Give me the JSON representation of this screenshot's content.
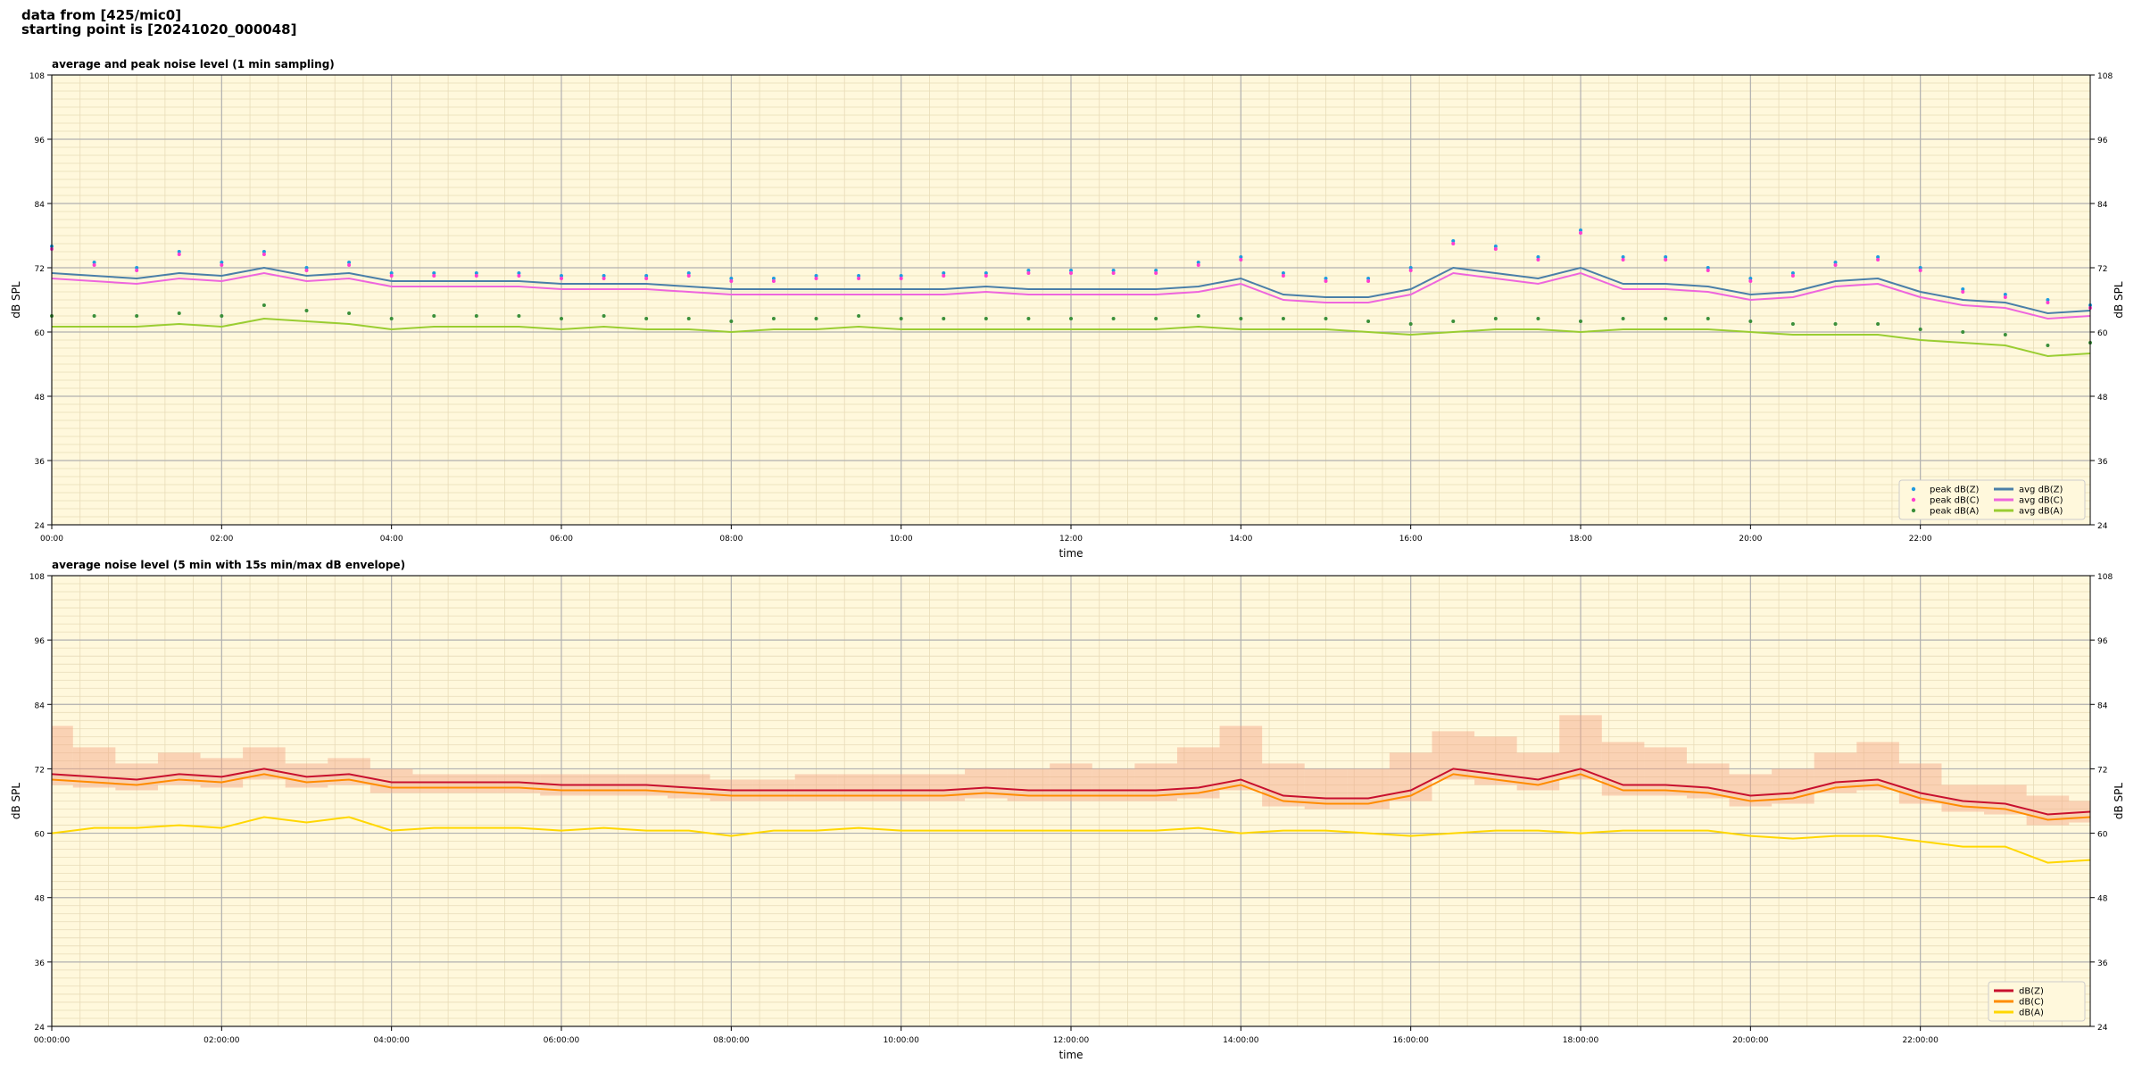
{
  "header": {
    "line1": "data from [425/mic0]",
    "line2": "starting point is [20241020_000048]"
  },
  "chart_data": [
    {
      "type": "line",
      "title": "average and peak noise level (1 min sampling)",
      "xlabel": "time",
      "ylabel": "dB SPL",
      "xlim": [
        0,
        24
      ],
      "ylim": [
        24,
        108
      ],
      "yticks": [
        24,
        36,
        48,
        60,
        72,
        84,
        96,
        108
      ],
      "xticks": [
        {
          "value": 0,
          "label": "00:00"
        },
        {
          "value": 2,
          "label": "02:00"
        },
        {
          "value": 4,
          "label": "04:00"
        },
        {
          "value": 6,
          "label": "06:00"
        },
        {
          "value": 8,
          "label": "08:00"
        },
        {
          "value": 10,
          "label": "10:00"
        },
        {
          "value": 12,
          "label": "12:00"
        },
        {
          "value": 14,
          "label": "14:00"
        },
        {
          "value": 16,
          "label": "16:00"
        },
        {
          "value": 18,
          "label": "18:00"
        },
        {
          "value": 20,
          "label": "20:00"
        },
        {
          "value": 22,
          "label": "22:00"
        }
      ],
      "grid": true,
      "minor_grid": true,
      "legend": "lower right",
      "legend_columns": 2,
      "background": "#fff8dc",
      "x": [
        0,
        0.5,
        1,
        1.5,
        2,
        2.5,
        3,
        3.5,
        4,
        4.5,
        5,
        5.5,
        6,
        6.5,
        7,
        7.5,
        8,
        8.5,
        9,
        9.5,
        10,
        10.5,
        11,
        11.5,
        12,
        12.5,
        13,
        13.5,
        14,
        14.5,
        15,
        15.5,
        16,
        16.5,
        17,
        17.5,
        18,
        18.5,
        19,
        19.5,
        20,
        20.5,
        21,
        21.5,
        22,
        22.5,
        23,
        23.5,
        24
      ],
      "series": [
        {
          "name": "peak dB(Z)",
          "kind": "scatter",
          "color": "#1f9be0",
          "values": [
            76,
            73,
            72,
            75,
            73,
            75,
            72,
            73,
            71,
            71,
            71,
            71,
            70.5,
            70.5,
            70.5,
            71,
            70,
            70,
            70.5,
            70.5,
            70.5,
            71,
            71,
            71.5,
            71.5,
            71.5,
            71.5,
            73,
            74,
            71,
            70,
            70,
            72,
            77,
            76,
            74,
            79,
            74,
            74,
            72,
            70,
            71,
            73,
            74,
            72,
            68,
            67,
            66,
            65
          ]
        },
        {
          "name": "peak dB(C)",
          "kind": "scatter",
          "color": "#ff3fd0",
          "values": [
            75.5,
            72.5,
            71.5,
            74.5,
            72.5,
            74.5,
            71.5,
            72.5,
            70.5,
            70.5,
            70.5,
            70.5,
            70,
            70,
            70,
            70.5,
            69.5,
            69.5,
            70,
            70,
            70,
            70.5,
            70.5,
            71,
            71,
            71,
            71,
            72.5,
            73.5,
            70.5,
            69.5,
            69.5,
            71.5,
            76.5,
            75.5,
            73.5,
            78.5,
            73.5,
            73.5,
            71.5,
            69.5,
            70.5,
            72.5,
            73.5,
            71.5,
            67.5,
            66.5,
            65.5,
            64.5
          ]
        },
        {
          "name": "peak dB(A)",
          "kind": "scatter",
          "color": "#3a8f3a",
          "values": [
            63,
            63,
            63,
            63.5,
            63,
            65,
            64,
            63.5,
            62.5,
            63,
            63,
            63,
            62.5,
            63,
            62.5,
            62.5,
            62,
            62.5,
            62.5,
            63,
            62.5,
            62.5,
            62.5,
            62.5,
            62.5,
            62.5,
            62.5,
            63,
            62.5,
            62.5,
            62.5,
            62,
            61.5,
            62,
            62.5,
            62.5,
            62,
            62.5,
            62.5,
            62.5,
            62,
            61.5,
            61.5,
            61.5,
            60.5,
            60,
            59.5,
            57.5,
            58
          ]
        },
        {
          "name": "avg dB(Z)",
          "kind": "line",
          "color": "#4a7fa8",
          "values": [
            71,
            70.5,
            70,
            71,
            70.5,
            72,
            70.5,
            71,
            69.5,
            69.5,
            69.5,
            69.5,
            69,
            69,
            69,
            68.5,
            68,
            68,
            68,
            68,
            68,
            68,
            68.5,
            68,
            68,
            68,
            68,
            68.5,
            70,
            67,
            66.5,
            66.5,
            68,
            72,
            71,
            70,
            72,
            69,
            69,
            68.5,
            67,
            67.5,
            69.5,
            70,
            67.5,
            66,
            65.5,
            63.5,
            64
          ]
        },
        {
          "name": "avg dB(C)",
          "kind": "line",
          "color": "#ee66dd",
          "values": [
            70,
            69.5,
            69,
            70,
            69.5,
            71,
            69.5,
            70,
            68.5,
            68.5,
            68.5,
            68.5,
            68,
            68,
            68,
            67.5,
            67,
            67,
            67,
            67,
            67,
            67,
            67.5,
            67,
            67,
            67,
            67,
            67.5,
            69,
            66,
            65.5,
            65.5,
            67,
            71,
            70,
            69,
            71,
            68,
            68,
            67.5,
            66,
            66.5,
            68.5,
            69,
            66.5,
            65,
            64.5,
            62.5,
            63
          ]
        },
        {
          "name": "avg dB(A)",
          "kind": "line",
          "color": "#9acd32",
          "values": [
            61,
            61,
            61,
            61.5,
            61,
            62.5,
            62,
            61.5,
            60.5,
            61,
            61,
            61,
            60.5,
            61,
            60.5,
            60.5,
            60,
            60.5,
            60.5,
            61,
            60.5,
            60.5,
            60.5,
            60.5,
            60.5,
            60.5,
            60.5,
            61,
            60.5,
            60.5,
            60.5,
            60,
            59.5,
            60,
            60.5,
            60.5,
            60,
            60.5,
            60.5,
            60.5,
            60,
            59.5,
            59.5,
            59.5,
            58.5,
            58,
            57.5,
            55.5,
            56
          ]
        }
      ]
    },
    {
      "type": "line",
      "title": "average noise level (5 min with 15s min/max dB envelope)",
      "xlabel": "time",
      "ylabel": "dB SPL",
      "xlim": [
        0,
        24
      ],
      "ylim": [
        24,
        108
      ],
      "yticks": [
        24,
        36,
        48,
        60,
        72,
        84,
        96,
        108
      ],
      "xticks": [
        {
          "value": 0,
          "label": "00:00:00"
        },
        {
          "value": 2,
          "label": "02:00:00"
        },
        {
          "value": 4,
          "label": "04:00:00"
        },
        {
          "value": 6,
          "label": "06:00:00"
        },
        {
          "value": 8,
          "label": "08:00:00"
        },
        {
          "value": 10,
          "label": "10:00:00"
        },
        {
          "value": 12,
          "label": "12:00:00"
        },
        {
          "value": 14,
          "label": "14:00:00"
        },
        {
          "value": 16,
          "label": "16:00:00"
        },
        {
          "value": 18,
          "label": "18:00:00"
        },
        {
          "value": 20,
          "label": "20:00:00"
        },
        {
          "value": 22,
          "label": "22:00:00"
        }
      ],
      "grid": true,
      "minor_grid": true,
      "legend": "lower right",
      "legend_columns": 1,
      "background": "#fff8dc",
      "envelope_color": "#f4a582",
      "x": [
        0,
        0.5,
        1,
        1.5,
        2,
        2.5,
        3,
        3.5,
        4,
        4.5,
        5,
        5.5,
        6,
        6.5,
        7,
        7.5,
        8,
        8.5,
        9,
        9.5,
        10,
        10.5,
        11,
        11.5,
        12,
        12.5,
        13,
        13.5,
        14,
        14.5,
        15,
        15.5,
        16,
        16.5,
        17,
        17.5,
        18,
        18.5,
        19,
        19.5,
        20,
        20.5,
        21,
        21.5,
        22,
        22.5,
        23,
        23.5,
        24
      ],
      "series": [
        {
          "name": "dB(Z)",
          "kind": "line",
          "color": "#c8102e",
          "values": [
            71,
            70.5,
            70,
            71,
            70.5,
            72,
            70.5,
            71,
            69.5,
            69.5,
            69.5,
            69.5,
            69,
            69,
            69,
            68.5,
            68,
            68,
            68,
            68,
            68,
            68,
            68.5,
            68,
            68,
            68,
            68,
            68.5,
            70,
            67,
            66.5,
            66.5,
            68,
            72,
            71,
            70,
            72,
            69,
            69,
            68.5,
            67,
            67.5,
            69.5,
            70,
            67.5,
            66,
            65.5,
            63.5,
            64
          ],
          "min": [
            69,
            68.5,
            68,
            69,
            68.5,
            70,
            68.5,
            69,
            67.5,
            67.5,
            67.5,
            67.5,
            67,
            67,
            67,
            66.5,
            66,
            66,
            66,
            66,
            66,
            66,
            66.5,
            66,
            66,
            66,
            66,
            66.5,
            68,
            65,
            64.5,
            64.5,
            66,
            70,
            69,
            68,
            70,
            67,
            67,
            66.5,
            65,
            65.5,
            67.5,
            68,
            65.5,
            64,
            63.5,
            61.5,
            62
          ],
          "max": [
            80,
            76,
            73,
            75,
            74,
            76,
            73,
            74,
            72,
            71,
            71,
            71,
            71,
            71,
            71,
            71,
            70,
            70,
            71,
            71,
            71,
            71,
            72,
            72,
            73,
            72,
            73,
            76,
            80,
            73,
            72,
            72,
            75,
            79,
            78,
            75,
            82,
            77,
            76,
            73,
            71,
            72,
            75,
            77,
            73,
            69,
            69,
            67,
            66
          ]
        },
        {
          "name": "dB(C)",
          "kind": "line",
          "color": "#ff8c00",
          "values": [
            70,
            69.5,
            69,
            70,
            69.5,
            71,
            69.5,
            70,
            68.5,
            68.5,
            68.5,
            68.5,
            68,
            68,
            68,
            67.5,
            67,
            67,
            67,
            67,
            67,
            67,
            67.5,
            67,
            67,
            67,
            67,
            67.5,
            69,
            66,
            65.5,
            65.5,
            67,
            71,
            70,
            69,
            71,
            68,
            68,
            67.5,
            66,
            66.5,
            68.5,
            69,
            66.5,
            65,
            64.5,
            62.5,
            63
          ]
        },
        {
          "name": "dB(A)",
          "kind": "line",
          "color": "#ffd700",
          "values": [
            60,
            61,
            61,
            61.5,
            61,
            63,
            62,
            63,
            60.5,
            61,
            61,
            61,
            60.5,
            61,
            60.5,
            60.5,
            59.5,
            60.5,
            60.5,
            61,
            60.5,
            60.5,
            60.5,
            60.5,
            60.5,
            60.5,
            60.5,
            61,
            60,
            60.5,
            60.5,
            60,
            59.5,
            60,
            60.5,
            60.5,
            60,
            60.5,
            60.5,
            60.5,
            59.5,
            59,
            59.5,
            59.5,
            58.5,
            57.5,
            57.5,
            54.5,
            55
          ]
        }
      ]
    }
  ]
}
